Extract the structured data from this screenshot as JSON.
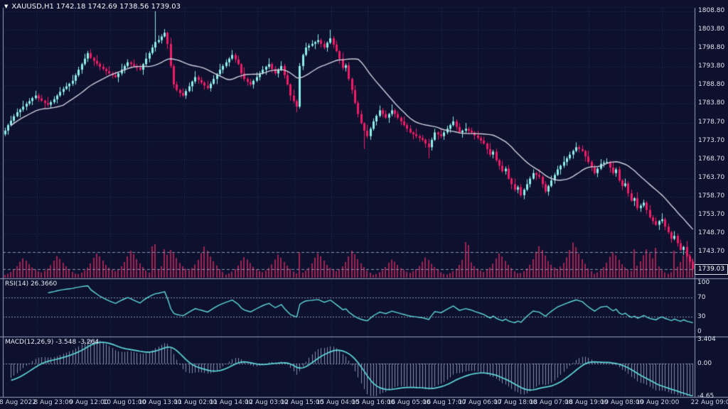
{
  "app": {
    "symbol_line": "XAUUSD,H1 1742.18 1742.69 1738.56 1739.03",
    "collapse_icon": "▼"
  },
  "colors": {
    "background": "#0d112e",
    "grid": "#272f58",
    "level_line": "#8a93b0",
    "separator": "#9aa3c0",
    "bull": "#8feee6",
    "bear": "#f01c66",
    "volume": "#a02355",
    "ma_line": "#cdd0dd",
    "indicator_line": "#5fd8da",
    "histogram": "#9aa4c8",
    "text": "#dfe4ee"
  },
  "main_axis": {
    "labels": [
      "1808.80",
      "1803.80",
      "1798.80",
      "1793.80",
      "1788.80",
      "1783.80",
      "1778.70",
      "1773.70",
      "1768.70",
      "1763.70",
      "1758.70",
      "1753.70",
      "1748.70",
      "1743.70"
    ],
    "ticks": [
      1808.8,
      1803.8,
      1798.8,
      1793.8,
      1788.8,
      1783.8,
      1778.7,
      1773.7,
      1768.7,
      1763.7,
      1758.7,
      1753.7,
      1748.7,
      1743.7
    ]
  },
  "rsi_panel": {
    "label": "RSI(14) 26.3660",
    "level_labels": [
      "100",
      "70",
      "30",
      "0"
    ],
    "level_values": [
      100,
      70,
      30,
      0
    ],
    "guide_levels": [
      70,
      30
    ]
  },
  "macd_panel": {
    "label": "MACD(12,26,9) -3.548 -3.264",
    "level_labels": [
      "3.404",
      "0.00",
      "-4.65"
    ],
    "level_values": [
      3.404,
      0,
      -4.65
    ]
  },
  "time_axis": {
    "labels": [
      "8 Aug 2022",
      "8 Aug 23:00",
      "9 Aug 12:00",
      "10 Aug 01:00",
      "10 Aug 13:00",
      "11 Aug 02:00",
      "11 Aug 14:00",
      "12 Aug 03:00",
      "12 Aug 15:00",
      "15 Aug 04:00",
      "15 Aug 16:00",
      "16 Aug 05:00",
      "16 Aug 17:00",
      "17 Aug 06:00",
      "17 Aug 18:00",
      "18 Aug 07:00",
      "18 Aug 19:00",
      "19 Aug 08:00",
      "19 Aug 20:00",
      "22 Aug 09:00"
    ]
  },
  "chart_data": {
    "type": "candlestick",
    "symbol": "XAUUSD",
    "timeframe": "H1",
    "current_bar": {
      "open": 1742.18,
      "high": 1742.69,
      "low": 1738.56,
      "close": 1739.03
    },
    "current_price_label": "1739.03",
    "price_axis": {
      "min": 1736,
      "max": 1810.5,
      "tick_step": 5
    },
    "hlines": [
      1743.55,
      1739.03
    ],
    "closes": [
      1776.5,
      1778.0,
      1779.2,
      1780.4,
      1781.5,
      1782.2,
      1783.0,
      1783.8,
      1784.5,
      1785.3,
      1786.0,
      1785.2,
      1784.6,
      1784.0,
      1783.5,
      1784.2,
      1785.0,
      1786.0,
      1787.0,
      1787.8,
      1788.5,
      1789.2,
      1790.0,
      1791.5,
      1793.0,
      1794.5,
      1796.0,
      1797.5,
      1796.2,
      1795.4,
      1794.6,
      1793.8,
      1793.2,
      1792.6,
      1792.0,
      1791.5,
      1791.0,
      1792.0,
      1793.0,
      1794.0,
      1795.0,
      1794.5,
      1794.0,
      1793.5,
      1793.0,
      1794.5,
      1796.0,
      1797.5,
      1799.0,
      1800.5,
      1801.0,
      1802.0,
      1803.0,
      1800.0,
      1794.0,
      1789.0,
      1787.5,
      1786.7,
      1786.0,
      1787.2,
      1788.5,
      1789.8,
      1791.0,
      1790.2,
      1789.5,
      1788.7,
      1788.0,
      1789.2,
      1790.5,
      1791.8,
      1793.0,
      1794.0,
      1795.0,
      1796.0,
      1797.0,
      1795.8,
      1794.5,
      1792.0,
      1790.5,
      1789.7,
      1789.0,
      1790.0,
      1791.0,
      1792.0,
      1793.0,
      1793.8,
      1794.5,
      1793.2,
      1792.0,
      1793.0,
      1794.0,
      1791.5,
      1789.0,
      1786.0,
      1784.5,
      1783.0,
      1794.0,
      1797.0,
      1799.0,
      1799.5,
      1800.0,
      1800.5,
      1801.0,
      1800.0,
      1799.0,
      1800.3,
      1801.5,
      1799.8,
      1798.0,
      1796.0,
      1793.5,
      1794.2,
      1790.5,
      1787.5,
      1784.0,
      1781.0,
      1778.5,
      1776.5,
      1775.0,
      1777.0,
      1779.0,
      1780.5,
      1782.0,
      1781.0,
      1780.0,
      1781.0,
      1782.0,
      1781.0,
      1780.0,
      1779.0,
      1778.0,
      1777.0,
      1776.0,
      1775.5,
      1775.0,
      1774.5,
      1774.0,
      1773.0,
      1772.0,
      1774.0,
      1776.0,
      1775.5,
      1775.0,
      1776.0,
      1777.0,
      1778.0,
      1779.0,
      1777.5,
      1776.0,
      1776.5,
      1777.0,
      1776.5,
      1776.0,
      1775.2,
      1774.5,
      1773.8,
      1773.0,
      1771.5,
      1770.0,
      1770.8,
      1768.5,
      1767.0,
      1765.5,
      1766.2,
      1763.5,
      1762.0,
      1760.5,
      1761.2,
      1759.0,
      1760.5,
      1762.0,
      1763.5,
      1765.0,
      1764.5,
      1764.0,
      1762.0,
      1760.0,
      1761.5,
      1763.0,
      1764.5,
      1766.0,
      1767.0,
      1768.0,
      1769.0,
      1770.0,
      1771.0,
      1772.0,
      1771.5,
      1771.0,
      1769.5,
      1768.0,
      1766.5,
      1765.0,
      1766.2,
      1767.5,
      1767.8,
      1768.0,
      1766.5,
      1765.0,
      1766.0,
      1763.0,
      1761.5,
      1762.2,
      1759.5,
      1757.5,
      1758.2,
      1755.5,
      1756.2,
      1757.0,
      1755.0,
      1753.0,
      1752.0,
      1751.0,
      1752.0,
      1752.5,
      1750.5,
      1749.0,
      1747.2,
      1748.0,
      1746.0,
      1744.2,
      1745.0,
      1742.5,
      1741.0,
      1739.0
    ],
    "wick_up_pattern": [
      0.8,
      0.4,
      1.3,
      0.6,
      1.0,
      0.3,
      1.6,
      0.5
    ],
    "wick_dn_pattern": [
      0.5,
      1.1,
      0.4,
      0.9,
      0.3,
      1.4,
      0.6,
      1.0
    ],
    "spikes": {
      "49": {
        "h": 1808.8
      },
      "106": {
        "h": 1803.8
      },
      "95": {
        "l": 1781.5
      },
      "117": {
        "l": 1771.5
      },
      "138": {
        "l": 1769.0
      }
    },
    "ma_period": 20,
    "volume": {
      "cycle": [
        5,
        7,
        10,
        14,
        20,
        28,
        34,
        30,
        24,
        18,
        14,
        11,
        9,
        12,
        16,
        22,
        30,
        38,
        33,
        26,
        20,
        15,
        10,
        7
      ],
      "day_mult": [
        0.8,
        1.0,
        1.15,
        0.85,
        1.0,
        0.75,
        0.9,
        1.3,
        1.05,
        1.1
      ],
      "spikes": {
        "48": 44,
        "49": 47,
        "52": 40,
        "96": 36,
        "150": 50,
        "151": 46,
        "205": 40,
        "212": 42,
        "218": 38
      }
    },
    "rsi": {
      "period": 14,
      "last_value": 26.366
    },
    "macd": {
      "fast": 12,
      "slow": 26,
      "signal": 9,
      "last_macd": -3.548,
      "last_signal": -3.264,
      "seed_offset": [
        1.5,
        4.0
      ],
      "axis_top": 3.404,
      "axis_bottom": -4.65
    }
  }
}
